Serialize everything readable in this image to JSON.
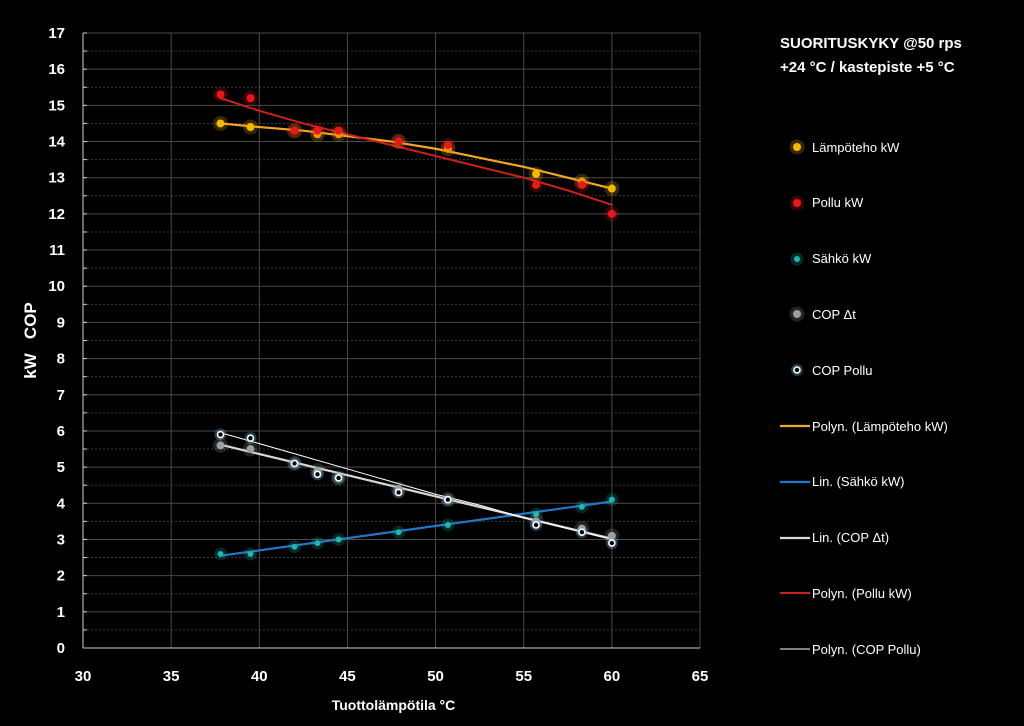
{
  "title": {
    "line1": "SUORITUSKYKY @50 rps",
    "line2": "+24 °C / kastepiste +5 °C"
  },
  "chart_data": {
    "type": "scatter",
    "title": "SUORITUSKYKY @50 rps +24 °C / kastepiste +5 °C",
    "xlabel": "Tuottolämpötila °C",
    "ylabel": "kW   COP",
    "xlim": [
      30,
      65
    ],
    "ylim": [
      0,
      17
    ],
    "xticks": [
      "30",
      "35",
      "40",
      "45",
      "50",
      "55",
      "60",
      "65"
    ],
    "yticks": [
      "0",
      "1",
      "2",
      "3",
      "4",
      "5",
      "6",
      "7",
      "8",
      "9",
      "10",
      "11",
      "12",
      "13",
      "14",
      "15",
      "16",
      "17"
    ],
    "grid": true,
    "series": [
      {
        "name": "Lämpöteho kW",
        "marker": "dot",
        "color": "#f5b800",
        "x": [
          37.8,
          39.5,
          42.0,
          43.3,
          44.5,
          47.9,
          50.7,
          55.7,
          58.3,
          60.0
        ],
        "y": [
          14.5,
          14.4,
          14.3,
          14.2,
          14.2,
          14.0,
          13.8,
          13.1,
          12.9,
          12.7
        ]
      },
      {
        "name": "Pollu kW",
        "marker": "dot",
        "color": "#e8191a",
        "x": [
          37.8,
          39.5,
          42.0,
          43.3,
          44.5,
          47.9,
          50.7,
          55.7,
          58.3,
          60.0
        ],
        "y": [
          15.3,
          15.2,
          14.3,
          14.3,
          14.3,
          14.0,
          13.9,
          12.8,
          12.8,
          12.0
        ]
      },
      {
        "name": "Sähkö kW",
        "marker": "smalldot",
        "color": "#1fb5b0",
        "x": [
          37.8,
          39.5,
          42.0,
          43.3,
          44.5,
          47.9,
          50.7,
          55.7,
          58.3,
          60.0
        ],
        "y": [
          2.6,
          2.6,
          2.8,
          2.9,
          3.0,
          3.2,
          3.4,
          3.7,
          3.9,
          4.1
        ]
      },
      {
        "name": "COP Δt",
        "marker": "dot",
        "color": "#9e9e9e",
        "x": [
          37.8,
          39.5,
          42.0,
          43.3,
          44.5,
          47.9,
          50.7,
          55.7,
          58.3,
          60.0
        ],
        "y": [
          5.6,
          5.5,
          5.1,
          4.9,
          4.7,
          4.4,
          4.1,
          3.5,
          3.3,
          3.1
        ]
      },
      {
        "name": "COP Pollu",
        "marker": "ring",
        "color": "#ffffff",
        "x": [
          37.8,
          39.5,
          42.0,
          43.3,
          44.5,
          47.9,
          50.7,
          55.7,
          58.3,
          60.0
        ],
        "y": [
          5.9,
          5.8,
          5.1,
          4.8,
          4.7,
          4.3,
          4.1,
          3.4,
          3.2,
          2.9
        ]
      }
    ],
    "trendlines": [
      {
        "name": "Polyn. (Lämpöteho kW)",
        "type": "poly",
        "color": "#f2a623",
        "width": 2.2,
        "x": [
          37.8,
          40,
          42.5,
          45,
          47.5,
          50,
          52.5,
          55,
          57.5,
          60
        ],
        "y": [
          14.5,
          14.4,
          14.3,
          14.15,
          14.0,
          13.8,
          13.55,
          13.3,
          13.0,
          12.7
        ]
      },
      {
        "name": "Lin. (Sähkö kW)",
        "type": "linear",
        "color": "#1f77c9",
        "width": 2.2,
        "x": [
          37.8,
          60
        ],
        "y": [
          2.55,
          4.05
        ]
      },
      {
        "name": "Lin. (COP Δt)",
        "type": "linear",
        "color": "#d9d9d9",
        "width": 2.2,
        "x": [
          37.8,
          60
        ],
        "y": [
          5.62,
          3.02
        ]
      },
      {
        "name": "Polyn. (Pollu kW)",
        "type": "poly",
        "color": "#cc1f1f",
        "width": 2.0,
        "x": [
          37.8,
          40,
          42.5,
          45,
          47.5,
          50,
          52.5,
          55,
          57.5,
          60
        ],
        "y": [
          15.2,
          14.85,
          14.5,
          14.2,
          13.9,
          13.6,
          13.3,
          13.0,
          12.65,
          12.25
        ]
      },
      {
        "name": "Polyn. (COP Pollu)",
        "type": "poly",
        "color": "#ffffff",
        "width": 1.0,
        "x": [
          37.8,
          40,
          42.5,
          45,
          47.5,
          50,
          52.5,
          55,
          57.5,
          60
        ],
        "y": [
          5.95,
          5.65,
          5.3,
          4.95,
          4.6,
          4.25,
          3.95,
          3.6,
          3.3,
          3.0
        ]
      }
    ],
    "legend_position": "right"
  }
}
